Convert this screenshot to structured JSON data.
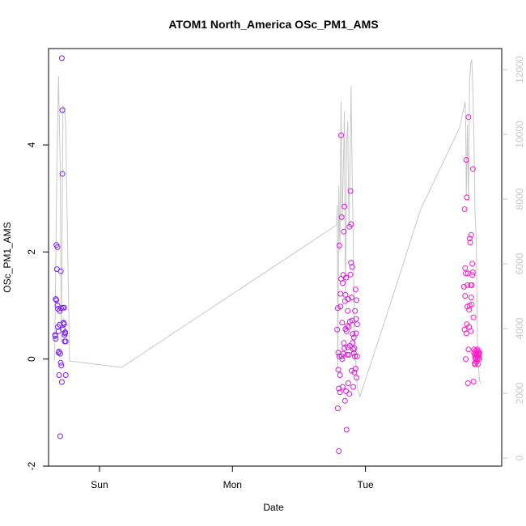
{
  "chart_data": {
    "type": "scatter",
    "title": "ATOM1 North_America OSc_PM1_AMS",
    "xlabel": "Date",
    "ylabel": "OSc_PM1_AMS",
    "x_ticks": [
      "Sun",
      "Mon",
      "Tue"
    ],
    "x_tick_hours": [
      24,
      48,
      72
    ],
    "x_range_hours": [
      14.8,
      96.6
    ],
    "ylim": [
      -2.0,
      5.8
    ],
    "y_ticks": [
      -2,
      0,
      2,
      4
    ],
    "y2_ticks": [
      0,
      2000,
      4000,
      6000,
      8000,
      10000,
      12000
    ],
    "y2_range": [
      -250,
      12650
    ],
    "colors": {
      "start": "#7a1fff",
      "end": "#ff19c8",
      "line": "#c8c8c8"
    },
    "series": [
      {
        "x_hours": [
          16.0,
          16.0,
          16.1,
          16.1,
          16.2,
          16.2,
          16.3,
          16.4,
          16.4,
          16.5,
          16.5,
          16.6,
          16.6,
          16.7,
          16.7,
          16.8,
          16.8,
          16.9,
          16.9,
          17.0,
          17.0,
          17.1,
          17.1,
          17.2,
          17.2,
          17.3,
          17.3,
          17.4,
          17.4,
          17.5,
          17.5,
          17.6,
          17.6,
          17.7,
          17.7,
          17.8,
          17.8,
          17.9,
          17.9
        ],
        "values": [
          0.43,
          0.45,
          0.38,
          1.12,
          1.1,
          2.13,
          1.68,
          1.0,
          2.09,
          0.94,
          0.6,
          0.12,
          0.52,
          0.14,
          -0.3,
          0.9,
          0.64,
          0.1,
          -1.44,
          1.64,
          -0.07,
          0.95,
          -0.12,
          -0.43,
          5.62,
          4.65,
          3.46,
          0.96,
          0.55,
          0.67,
          0.68,
          0.96,
          0.65,
          0.33,
          0.45,
          0.5,
          0.48,
          -0.3,
          0.33
        ]
      },
      {
        "x_hours": [
          66.9,
          67.0,
          67.0,
          67.1,
          67.1,
          67.2,
          67.2,
          67.3,
          67.3,
          67.4,
          67.4,
          67.5,
          67.5,
          67.6,
          67.6,
          67.7,
          67.7,
          67.8,
          67.8,
          67.9,
          67.9,
          68.0,
          68.0,
          68.1,
          68.1,
          68.2,
          68.2,
          68.3,
          68.3,
          68.4,
          68.4,
          68.5,
          68.5,
          68.6,
          68.6,
          68.7,
          68.7,
          68.8,
          68.8,
          68.9,
          68.9,
          69.0,
          69.0,
          69.1,
          69.1,
          69.2,
          69.2,
          69.3,
          69.3,
          69.4,
          69.4,
          69.5,
          69.5,
          69.6,
          69.6,
          69.7,
          69.7,
          69.8,
          69.8,
          69.9,
          69.9,
          70.0,
          70.0,
          70.1,
          70.1,
          70.2,
          70.2,
          70.3,
          70.3,
          70.4,
          70.4,
          70.5,
          70.5
        ],
        "values": [
          0.55,
          0.95,
          -0.92,
          0.12,
          -0.2,
          -0.55,
          -1.72,
          0.05,
          2.12,
          -0.62,
          -0.3,
          0.98,
          1.22,
          4.18,
          1.5,
          2.65,
          0.05,
          0.0,
          0.68,
          1.42,
          -0.52,
          0.1,
          1.57,
          0.3,
          2.38,
          2.85,
          0.2,
          1.08,
          -0.78,
          1.2,
          0.56,
          1.52,
          -0.6,
          0.52,
          -1.32,
          0.08,
          0.62,
          0.22,
          0.9,
          -0.45,
          1.12,
          0.6,
          0.08,
          -0.65,
          2.47,
          0.7,
          0.25,
          3.14,
          1.58,
          2.52,
          1.8,
          1.15,
          -0.22,
          1.72,
          0.72,
          0.3,
          0.47,
          0.18,
          -0.52,
          0.4,
          0.11,
          -0.25,
          0.2,
          0.9,
          0.05,
          1.3,
          -0.18,
          0.75,
          0.48,
          1.1,
          -0.35,
          0.05,
          0.65
        ]
      },
      {
        "x_hours": [
          89.8,
          89.9,
          89.9,
          90.0,
          90.0,
          90.1,
          90.1,
          90.2,
          90.2,
          90.3,
          90.3,
          90.4,
          90.4,
          90.5,
          90.5,
          90.6,
          90.6,
          90.7,
          90.7,
          90.8,
          90.8,
          90.9,
          91.0,
          91.0,
          91.1,
          91.1,
          91.2,
          91.2,
          91.3,
          91.3,
          91.4,
          91.4,
          91.5,
          91.5,
          91.6,
          91.6,
          91.7,
          91.7,
          91.8,
          91.8,
          91.9,
          91.9,
          92.0,
          92.0,
          92.1,
          92.1,
          92.2,
          92.2,
          92.3,
          92.3,
          92.4,
          92.4,
          92.5,
          92.5,
          92.6,
          92.6
        ],
        "values": [
          1.35,
          0.55,
          2.8,
          1.18,
          1.7,
          1.6,
          0.0,
          0.48,
          3.72,
          0.65,
          3.02,
          1.38,
          0.98,
          1.6,
          -0.45,
          0.18,
          4.52,
          0.6,
          0.92,
          2.25,
          1.0,
          2.18,
          0.52,
          1.38,
          1.15,
          2.32,
          1.38,
          1.02,
          1.78,
          1.57,
          3.55,
          1.62,
          0.78,
          -0.42,
          0.18,
          0.12,
          -0.08,
          0.08,
          0.02,
          -0.1,
          0.16,
          0.0,
          0.1,
          -0.05,
          0.12,
          0.05,
          0.18,
          0.0,
          0.08,
          -0.1,
          0.15,
          0.02,
          0.1,
          0.06,
          0.12,
          0.0
        ]
      }
    ],
    "secondary_line": {
      "x_hours": [
        15.9,
        16.3,
        16.6,
        16.9,
        17.1,
        17.4,
        17.7,
        17.9,
        18.1,
        18.6,
        28.0,
        66.8,
        66.9,
        67.0,
        67.1,
        67.2,
        67.3,
        67.4,
        67.5,
        67.6,
        67.8,
        68.0,
        68.2,
        68.4,
        68.6,
        68.8,
        69.0,
        69.2,
        69.4,
        69.6,
        69.8,
        70.0,
        70.2,
        70.4,
        70.5,
        71.0,
        76.0,
        82.0,
        89.0,
        90.0,
        90.1,
        90.2,
        90.4,
        90.6,
        90.8,
        91.0,
        91.2,
        91.4,
        91.6,
        91.8,
        92.0,
        92.2,
        92.4,
        92.6,
        92.8
      ],
      "values": [
        3000,
        9000,
        11800,
        9000,
        3600,
        10900,
        10800,
        10300,
        8000,
        3000,
        2800,
        7200,
        7800,
        2700,
        4600,
        8400,
        7200,
        6400,
        9200,
        11000,
        7300,
        8800,
        10700,
        4800,
        9700,
        10400,
        7200,
        8700,
        11500,
        8800,
        6800,
        3000,
        3200,
        2600,
        2200,
        1900,
        4500,
        7700,
        10200,
        11000,
        10400,
        8100,
        10300,
        7900,
        11700,
        12200,
        12300,
        11400,
        9700,
        7400,
        6800,
        3700,
        2800,
        2400,
        2300
      ]
    }
  }
}
